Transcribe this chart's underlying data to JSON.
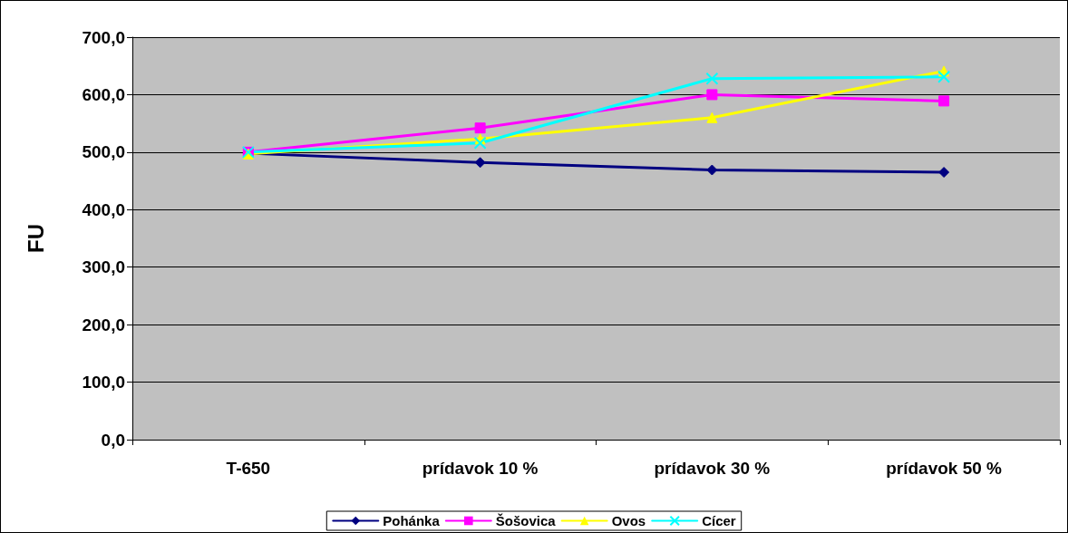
{
  "chart_data": {
    "type": "line",
    "ylabel": "FU",
    "categories": [
      "T-650",
      "prídavok 10 %",
      "prídavok 30 %",
      "prídavok 50 %"
    ],
    "series": [
      {
        "name": "Pohánka",
        "color": "#000080",
        "marker": "diamond",
        "values": [
          498,
          482,
          469,
          465
        ]
      },
      {
        "name": "Šošovica",
        "color": "#ff00ff",
        "marker": "square",
        "values": [
          500,
          542,
          600,
          589
        ]
      },
      {
        "name": "Ovos",
        "color": "#ffff00",
        "marker": "triangle",
        "values": [
          497,
          523,
          560,
          641
        ]
      },
      {
        "name": "Cícer",
        "color": "#00ffff",
        "marker": "cross",
        "values": [
          500,
          516,
          628,
          631
        ]
      }
    ],
    "ylim": [
      0,
      700
    ],
    "yticks": [
      {
        "value": 0,
        "label": "0,0"
      },
      {
        "value": 100,
        "label": "100,0"
      },
      {
        "value": 200,
        "label": "200,0"
      },
      {
        "value": 300,
        "label": "300,0"
      },
      {
        "value": 400,
        "label": "400,0"
      },
      {
        "value": 500,
        "label": "500,0"
      },
      {
        "value": 600,
        "label": "600,0"
      },
      {
        "value": 700,
        "label": "700,0"
      }
    ],
    "grid": "y",
    "legend": "bottom"
  }
}
